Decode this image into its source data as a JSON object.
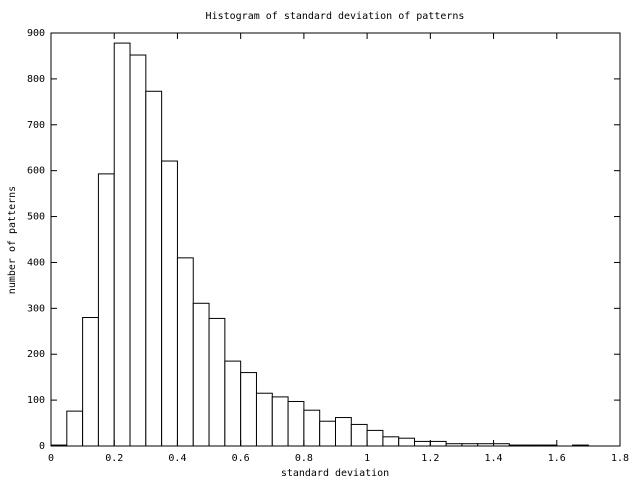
{
  "chart_data": {
    "type": "histogram",
    "title": "Histogram of standard deviation of patterns",
    "x_label": "standard deviation",
    "y_label": "number of patterns",
    "bins": [
      0,
      0.05,
      0.1,
      0.15,
      0.2,
      0.25,
      0.3,
      0.35,
      0.4,
      0.45,
      0.5,
      0.55,
      0.6,
      0.65,
      0.7,
      0.75,
      0.8,
      0.85,
      0.9,
      0.95,
      1,
      1.05,
      1.1,
      1.15,
      1.2,
      1.25,
      1.3,
      1.35,
      1.4,
      1.45,
      1.5,
      1.55,
      1.6,
      1.65,
      1.7
    ],
    "values": [
      2,
      76,
      280,
      593,
      878,
      852,
      773,
      621,
      410,
      311,
      278,
      185,
      160,
      115,
      107,
      97,
      78,
      54,
      62,
      47,
      34,
      20,
      17,
      10,
      10,
      5,
      5,
      5,
      5,
      2,
      2,
      2,
      0,
      2
    ],
    "color": "#ffffff",
    "xlim": [
      0,
      1.8
    ],
    "xticks": [
      0,
      0.2,
      0.4,
      0.6,
      0.8,
      1,
      1.2,
      1.4,
      1.6,
      1.8
    ],
    "ylim": [
      0,
      900
    ],
    "yticks": [
      0,
      100,
      200,
      300,
      400,
      500,
      600,
      700,
      800,
      900
    ],
    "grid": false
  }
}
